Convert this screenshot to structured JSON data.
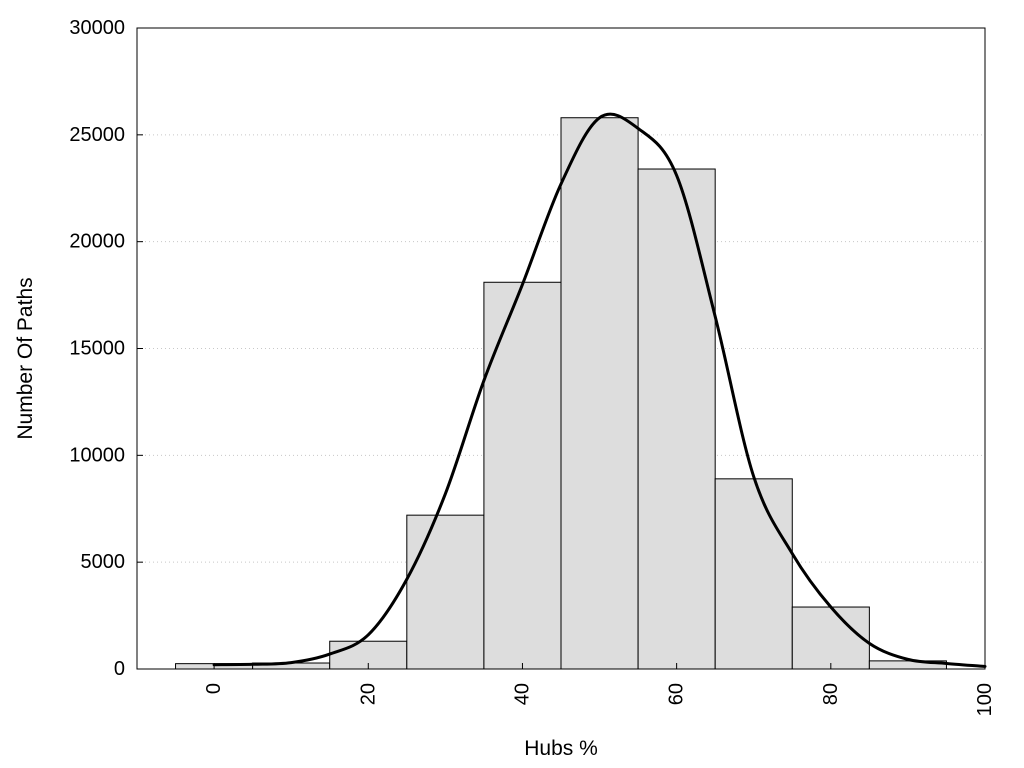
{
  "chart_data": {
    "type": "bar",
    "title": "",
    "xlabel": "Hubs %",
    "ylabel": "Number Of Paths",
    "xlim": [
      -10,
      100
    ],
    "ylim": [
      0,
      30000
    ],
    "x_ticks": [
      0,
      20,
      40,
      60,
      80,
      100
    ],
    "y_ticks": [
      0,
      5000,
      10000,
      15000,
      20000,
      25000,
      30000
    ],
    "grid": "horizontal-dotted",
    "legend": "none",
    "bin_width": 10,
    "bars": {
      "x": [
        0,
        10,
        20,
        30,
        40,
        50,
        60,
        70,
        80,
        90
      ],
      "values": [
        250,
        280,
        1300,
        7200,
        18100,
        25800,
        23400,
        8900,
        2900,
        380
      ]
    },
    "curve": {
      "x": [
        0,
        5,
        10,
        15,
        20,
        25,
        30,
        35,
        40,
        45,
        50,
        55,
        60,
        65,
        70,
        75,
        80,
        85,
        90,
        95,
        100
      ],
      "y": [
        200,
        220,
        300,
        700,
        1600,
        4200,
        8200,
        13500,
        18000,
        22700,
        25800,
        25300,
        23100,
        16500,
        9000,
        5400,
        2900,
        1200,
        450,
        260,
        120
      ]
    },
    "colors": {
      "bar_fill": "#dddddd",
      "bar_stroke": "#000000",
      "curve": "#000000",
      "grid": "#c8c8c8"
    }
  }
}
